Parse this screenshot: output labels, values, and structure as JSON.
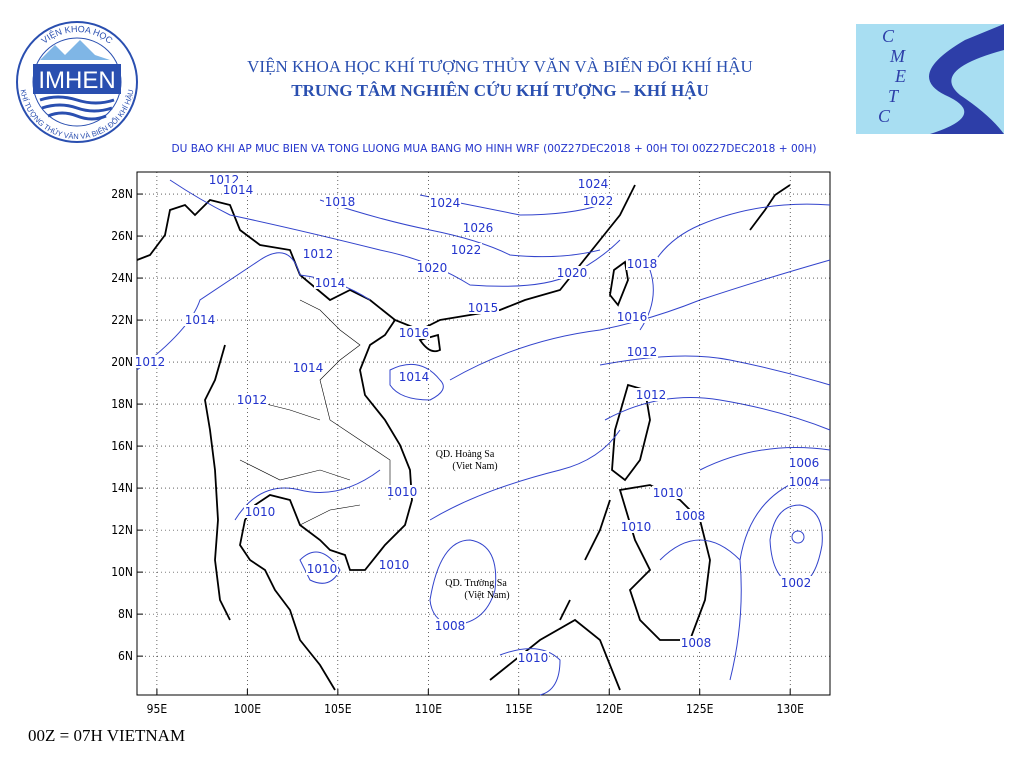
{
  "header": {
    "institute": "VIỆN KHOA HỌC KHÍ TƯỢNG THỦY VĂN VÀ BIẾN ĐỔI KHÍ HẬU",
    "center": "TRUNG TÂM NGHIÊN CỨU KHÍ TƯỢNG – KHÍ HẬU"
  },
  "imhen_logo": {
    "name": "IMHEN",
    "ring_top": "VIỆN KHOA HỌC",
    "ring_bottom": "KHÍ TƯỢNG THỦY VĂN VÀ BIẾN ĐỔI KHÍ HẬU"
  },
  "cmetc_logo": {
    "letters": [
      "C",
      "M",
      "E",
      "T",
      "C"
    ]
  },
  "map": {
    "title": "DU BAO KHI AP MUC BIEN VA TONG LUONG MUA BANG MO HINH WRF (00Z27DEC2018 + 00H TOI 00Z27DEC2018 + 00H)",
    "lonlim": [
      93.9,
      132.2
    ],
    "latlim": [
      4.15,
      29.05
    ],
    "lon_ticks": [
      {
        "value": 95,
        "label": "95E"
      },
      {
        "value": 100,
        "label": "100E"
      },
      {
        "value": 105,
        "label": "105E"
      },
      {
        "value": 110,
        "label": "110E"
      },
      {
        "value": 115,
        "label": "115E"
      },
      {
        "value": 120,
        "label": "120E"
      },
      {
        "value": 125,
        "label": "125E"
      },
      {
        "value": 130,
        "label": "130E"
      }
    ],
    "lat_ticks": [
      {
        "value": 6,
        "label": "6N"
      },
      {
        "value": 8,
        "label": "8N"
      },
      {
        "value": 10,
        "label": "10N"
      },
      {
        "value": 12,
        "label": "12N"
      },
      {
        "value": 14,
        "label": "14N"
      },
      {
        "value": 16,
        "label": "16N"
      },
      {
        "value": 18,
        "label": "18N"
      },
      {
        "value": 20,
        "label": "20N"
      },
      {
        "value": 22,
        "label": "22N"
      },
      {
        "value": 24,
        "label": "24N"
      },
      {
        "value": 26,
        "label": "26N"
      },
      {
        "value": 28,
        "label": "28N"
      }
    ],
    "contour_labels": [
      1012,
      1014,
      1018,
      1024,
      1024,
      1022,
      1026,
      1022,
      1012,
      1020,
      1014,
      1020,
      1018,
      1015,
      1016,
      1014,
      1016,
      1012,
      1012,
      1014,
      1014,
      1012,
      1012,
      1006,
      1004,
      1010,
      1010,
      1008,
      1010,
      1010,
      1010,
      1010,
      1002,
      1008,
      1008,
      1010
    ],
    "places": [
      "QD. Hoàng Sa",
      "(Viet Nam)",
      "QD. Trường Sa",
      "(Việt Nam)"
    ]
  },
  "footer": "00Z = 07H VIETNAM"
}
